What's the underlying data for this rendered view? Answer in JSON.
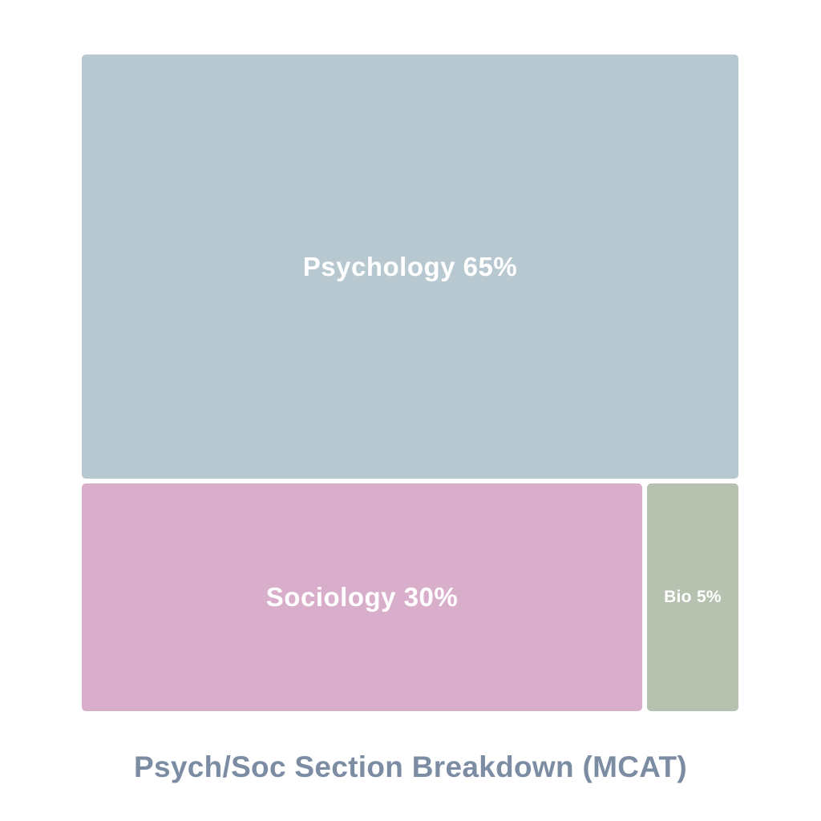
{
  "chart_data": {
    "type": "treemap",
    "title": "Psych/Soc Section Breakdown (MCAT)",
    "unit": "%",
    "legend": "none",
    "items": [
      {
        "label": "Psychology",
        "value": 65,
        "display": "Psychology 65%",
        "color": "#b7c8d1",
        "text_color": "#ffffff"
      },
      {
        "label": "Sociology",
        "value": 30,
        "display": "Sociology 30%",
        "color": "#d9aecb",
        "text_color": "#ffffff"
      },
      {
        "label": "Bio",
        "value": 5,
        "display": "Bio 5%",
        "color": "#b6c2af",
        "text_color": "#ffffff"
      }
    ]
  },
  "colors": {
    "background": "#ffffff",
    "title_text": "#7b8ca3",
    "tile_label_text": "#ffffff"
  }
}
